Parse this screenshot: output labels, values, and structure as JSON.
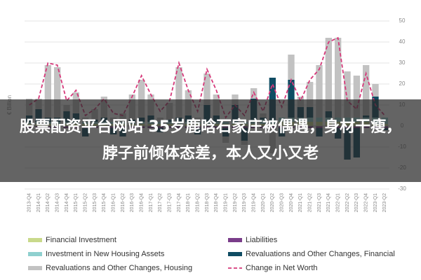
{
  "chart_data": {
    "type": "bar",
    "stacked": true,
    "y_label": "€ Billion",
    "categories": [
      "2013-Q4",
      "2014-Q1",
      "2014-Q2",
      "2014-Q3",
      "2014-Q4",
      "2015-Q1",
      "2015-Q2",
      "2015-Q3",
      "2015-Q4",
      "2016-Q1",
      "2016-Q2",
      "2016-Q3",
      "2016-Q4",
      "2017-Q1",
      "2017-Q2",
      "2017-Q3",
      "2017-Q4",
      "2018-Q1",
      "2018-Q2",
      "2018-Q3",
      "2018-Q4",
      "2019-Q1",
      "2019-Q2",
      "2019-Q3",
      "2019-Q4",
      "2020-Q1",
      "2020-Q2",
      "2020-Q3",
      "2020-Q4",
      "2021-Q1",
      "2021-Q2",
      "2021-Q3",
      "2021-Q4",
      "2022-Q1",
      "2022-Q2",
      "2022-Q3",
      "2022-Q4",
      "2023-Q1",
      "2023-Q2"
    ],
    "series": [
      {
        "name": "Financial Investment",
        "color": "#c9d98b",
        "values": [
          1,
          1,
          1,
          1,
          1,
          1,
          1,
          1,
          1,
          1,
          1,
          1,
          1,
          1,
          1,
          1,
          1,
          1,
          1,
          1,
          1,
          1,
          1,
          1,
          1,
          1,
          1,
          2,
          2,
          2,
          2,
          2,
          2,
          2,
          2,
          2,
          2,
          1,
          1
        ]
      },
      {
        "name": "Liabilities",
        "color": "#7a3d8a",
        "values": [
          -1,
          -1,
          -1,
          -1,
          -1,
          -1,
          -1,
          -1,
          -1,
          -1,
          -1,
          -1,
          -1,
          -1,
          -1,
          -1,
          -1,
          -1,
          -1,
          -1,
          -1,
          -1,
          -1,
          -1,
          -1,
          -1,
          -1,
          -1,
          -1,
          -1,
          -1,
          -1,
          -1,
          -1,
          -1,
          -1,
          -1,
          -1,
          -1
        ]
      },
      {
        "name": "Investment in New Housing Assets",
        "color": "#8fd0cf",
        "values": [
          1,
          1,
          1,
          1,
          1,
          1,
          1,
          1,
          1,
          1,
          1,
          1,
          1,
          1,
          1,
          1,
          1,
          1,
          1,
          1,
          1,
          1,
          1,
          1,
          2,
          2,
          2,
          2,
          2,
          2,
          2,
          2,
          2,
          2,
          2,
          2,
          2,
          3,
          3
        ]
      },
      {
        "name": "Revaluations and Other Changes, Financial",
        "color": "#0f4c63",
        "values": [
          3,
          6,
          2,
          2,
          5,
          4,
          -4,
          1,
          2,
          -3,
          -4,
          1,
          2,
          3,
          -2,
          1,
          2,
          3,
          -3,
          8,
          3,
          -4,
          8,
          -6,
          10,
          1,
          20,
          -4,
          18,
          5,
          5,
          -4,
          3,
          -5,
          -15,
          -14,
          1,
          10,
          -1
        ]
      },
      {
        "name": "Revaluations and Other Changes, Housing",
        "color": "#c2c2c2",
        "values": [
          8,
          5,
          25,
          24,
          3,
          10,
          2,
          5,
          10,
          2,
          4,
          12,
          18,
          10,
          2,
          8,
          24,
          12,
          2,
          15,
          10,
          -3,
          5,
          -2,
          5,
          2,
          -12,
          0,
          12,
          5,
          12,
          25,
          35,
          38,
          22,
          20,
          24,
          6,
          0
        ]
      },
      {
        "name": "Change in Net Worth",
        "type": "line",
        "line_style": "dashed",
        "color": "#d6397a",
        "values": [
          10,
          13,
          30,
          29,
          12,
          17,
          5,
          8,
          13,
          6,
          5,
          14,
          24,
          15,
          7,
          12,
          30,
          17,
          7,
          27,
          17,
          4,
          10,
          5,
          16,
          7,
          20,
          9,
          22,
          12,
          22,
          27,
          40,
          42,
          12,
          8,
          25,
          10,
          5
        ]
      }
    ],
    "ylim": [
      -30,
      50
    ],
    "yticks": [
      -30,
      -20,
      -10,
      0,
      10,
      20,
      30,
      40,
      50
    ],
    "grid": true,
    "legend": "bottom"
  },
  "overlay_text": "股票配资平台网站 35岁鹿晗石家庄被偶遇，身材干瘦，脖子前倾体态差，本人又小又老"
}
